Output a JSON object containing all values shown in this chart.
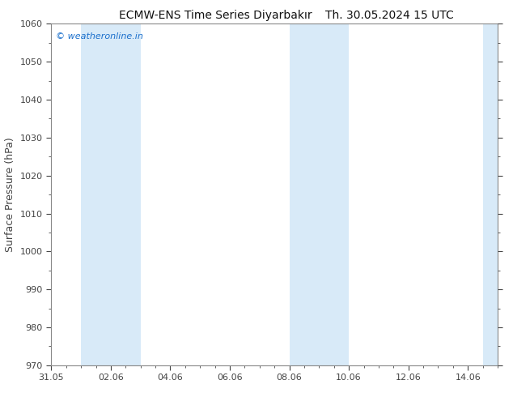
{
  "title_left": "ECMW-ENS Time Series Diyarbakır",
  "title_right": "Th. 30.05.2024 15 UTC",
  "ylabel": "Surface Pressure (hPa)",
  "ylim": [
    970,
    1060
  ],
  "yticks": [
    970,
    980,
    990,
    1000,
    1010,
    1020,
    1030,
    1040,
    1050,
    1060
  ],
  "xlim_start": 0,
  "xlim_end": 15,
  "xtick_positions": [
    0,
    2,
    4,
    6,
    8,
    10,
    12,
    14
  ],
  "xtick_labels": [
    "31.05",
    "02.06",
    "04.06",
    "06.06",
    "08.06",
    "10.06",
    "12.06",
    "14.06"
  ],
  "background_color": "#ffffff",
  "plot_bg_color": "#ffffff",
  "watermark": "© weatheronline.in",
  "watermark_color": "#1a6fcc",
  "shaded_bands": [
    {
      "x_start": 1.0,
      "x_end": 2.0,
      "color": "#d8eaf8"
    },
    {
      "x_start": 2.0,
      "x_end": 3.0,
      "color": "#d8eaf8"
    },
    {
      "x_start": 8.0,
      "x_end": 9.0,
      "color": "#d8eaf8"
    },
    {
      "x_start": 9.0,
      "x_end": 10.0,
      "color": "#d8eaf8"
    },
    {
      "x_start": 14.5,
      "x_end": 15.0,
      "color": "#d8eaf8"
    }
  ],
  "spine_color": "#888888",
  "tick_color": "#444444",
  "title_fontsize": 10,
  "label_fontsize": 9,
  "tick_fontsize": 8
}
